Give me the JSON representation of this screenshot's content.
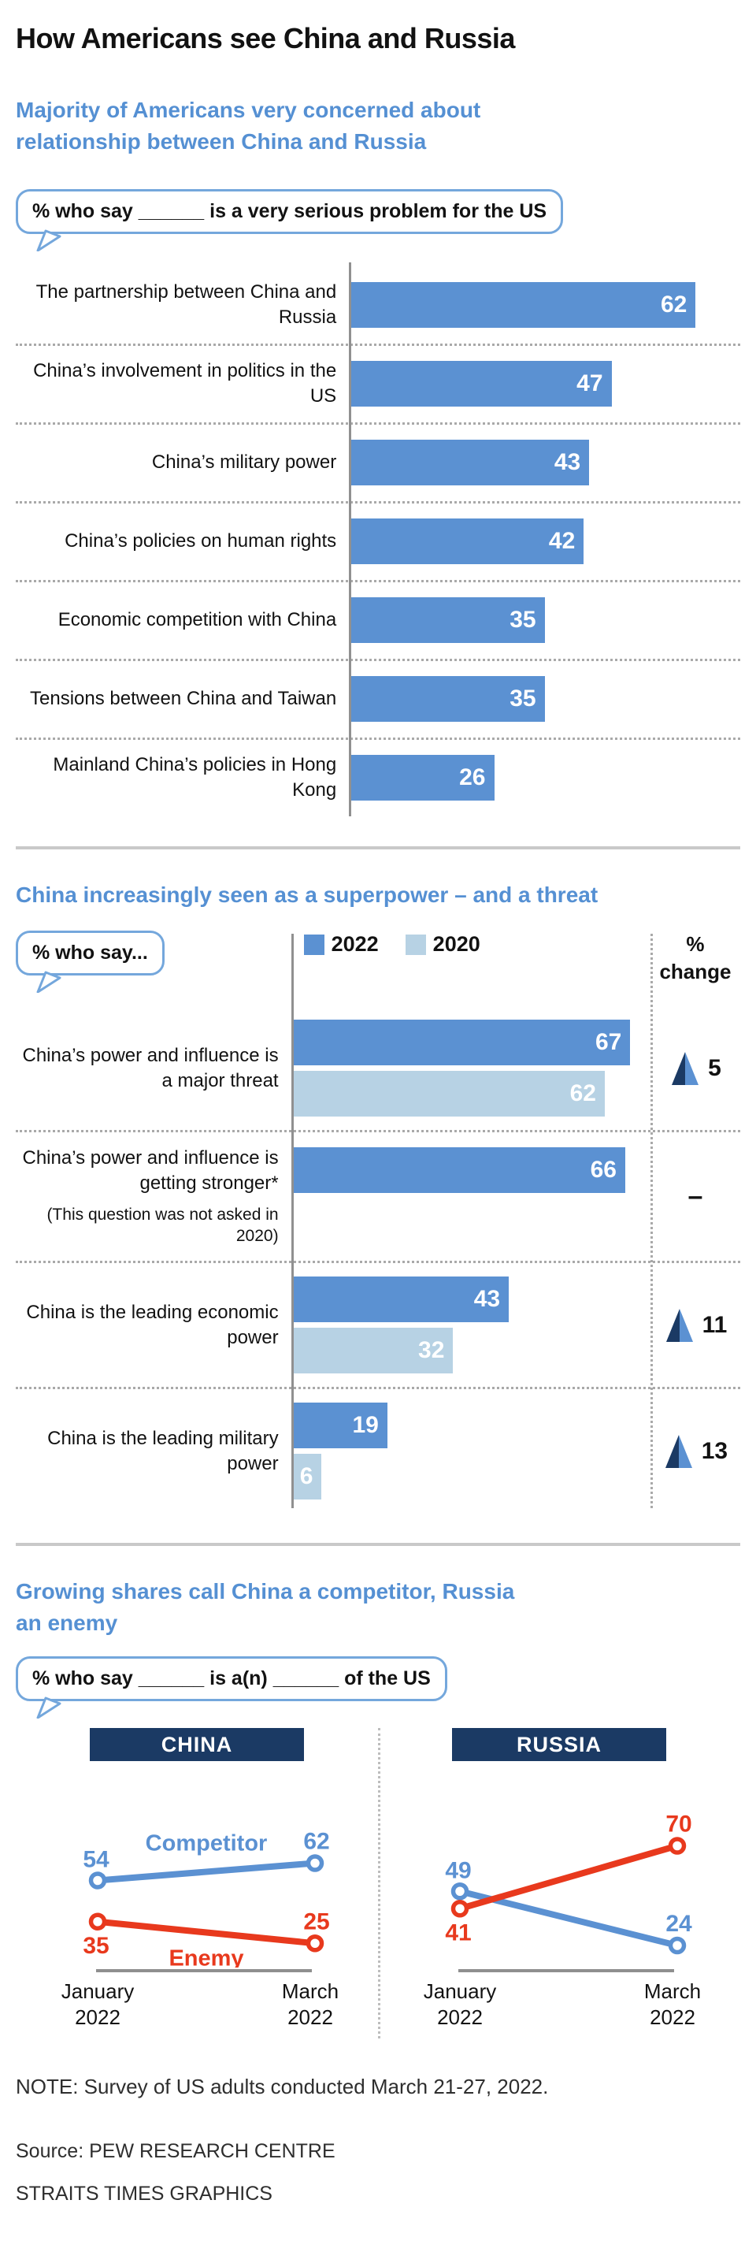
{
  "page": {
    "title": "How Americans see China and Russia",
    "note": "NOTE: Survey of US adults conducted March 21-27, 2022.",
    "source": "Source: PEW RESEARCH CENTRE",
    "credit": "STRAITS TIMES GRAPHICS"
  },
  "colors": {
    "bar_blue": "#5b91d2",
    "bar_light": "#b7d2e4",
    "navy": "#1b3a64",
    "heading_blue": "#5590d3",
    "red": "#e8391d",
    "callout_border": "#74a7dc"
  },
  "chart_data": [
    {
      "id": "serious-problem",
      "type": "bar",
      "orientation": "horizontal",
      "title": "Majority of Americans very concerned about relationship between China and Russia",
      "callout": "% who say ______ is a very serious problem for the US",
      "categories": [
        "The partnership between China and Russia",
        "China’s involvement in politics in the US",
        "China’s military power",
        "China’s policies on human rights",
        "Economic competition with China",
        "Tensions between China and Taiwan",
        "Mainland China’s policies in Hong Kong"
      ],
      "values": [
        62,
        47,
        43,
        42,
        35,
        35,
        26
      ],
      "xlim": [
        0,
        70
      ],
      "bar_color": "#5b91d2",
      "grid": false,
      "value_labels": "inside-end"
    },
    {
      "id": "superpower-threat",
      "type": "bar",
      "orientation": "horizontal",
      "title": "China increasingly seen as a superpower – and a threat",
      "callout": "% who say...",
      "series": [
        {
          "name": "2022",
          "color": "#5b91d2"
        },
        {
          "name": "2020",
          "color": "#b7d2e4"
        }
      ],
      "pct_change_label": "% change",
      "rows": [
        {
          "label": "China’s power and influence is a major threat",
          "note": null,
          "v2022": 67,
          "v2020": 62,
          "change": "5"
        },
        {
          "label": "China’s power and influence is getting stronger*",
          "note": "(This question was not asked in 2020)",
          "v2022": 66,
          "v2020": null,
          "change": "–"
        },
        {
          "label": "China is the leading economic power",
          "note": null,
          "v2022": 43,
          "v2020": 32,
          "change": "11"
        },
        {
          "label": "China is the leading military power",
          "note": null,
          "v2022": 19,
          "v2020": 6,
          "change": "13"
        }
      ],
      "xlim": [
        0,
        71
      ],
      "legend_position": "top"
    },
    {
      "id": "competitor-enemy",
      "type": "line",
      "title": "Growing shares call China a competitor, Russia an enemy",
      "callout": "% who say ______ is a(n) ______ of the US",
      "x_labels": [
        "January 2022",
        "March 2022"
      ],
      "panels": [
        {
          "name": "CHINA",
          "series": [
            {
              "name": "Competitor",
              "color": "#5b91d2",
              "values": [
                54,
                62
              ],
              "show_name": true
            },
            {
              "name": "Enemy",
              "color": "#e8391d",
              "values": [
                35,
                25
              ],
              "show_name": true
            }
          ]
        },
        {
          "name": "RUSSIA",
          "series": [
            {
              "name": "Competitor",
              "color": "#5b91d2",
              "values": [
                49,
                24
              ],
              "show_name": false
            },
            {
              "name": "Enemy",
              "color": "#e8391d",
              "values": [
                41,
                70
              ],
              "show_name": false
            }
          ]
        }
      ]
    }
  ]
}
